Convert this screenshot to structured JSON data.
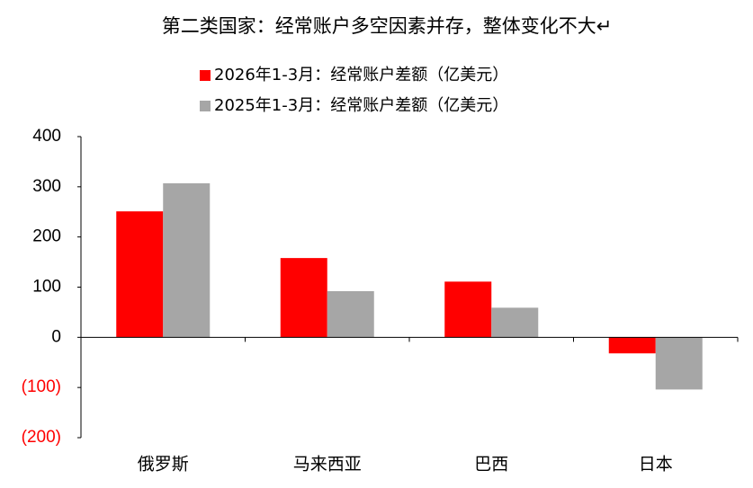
{
  "chart_data": {
    "type": "bar",
    "title": "第二类国家：经常账户多空因素并存，整体变化不大↵",
    "categories": [
      "俄罗斯",
      "马来西亚",
      "巴西",
      "日本"
    ],
    "series": [
      {
        "name": "2026年1-3月：经常账户差额（亿美元）",
        "color": "#ff0000",
        "values": [
          251,
          158,
          111,
          -32
        ]
      },
      {
        "name": "2025年1-3月：经常账户差额（亿美元）",
        "color": "#a6a6a6",
        "values": [
          307,
          92,
          59,
          -104
        ]
      }
    ],
    "ylim": [
      -200,
      400
    ],
    "yticks": [
      {
        "value": -200,
        "label": "(200)"
      },
      {
        "value": -100,
        "label": "(100)"
      },
      0,
      100,
      200,
      300,
      400
    ],
    "legend": "top"
  }
}
